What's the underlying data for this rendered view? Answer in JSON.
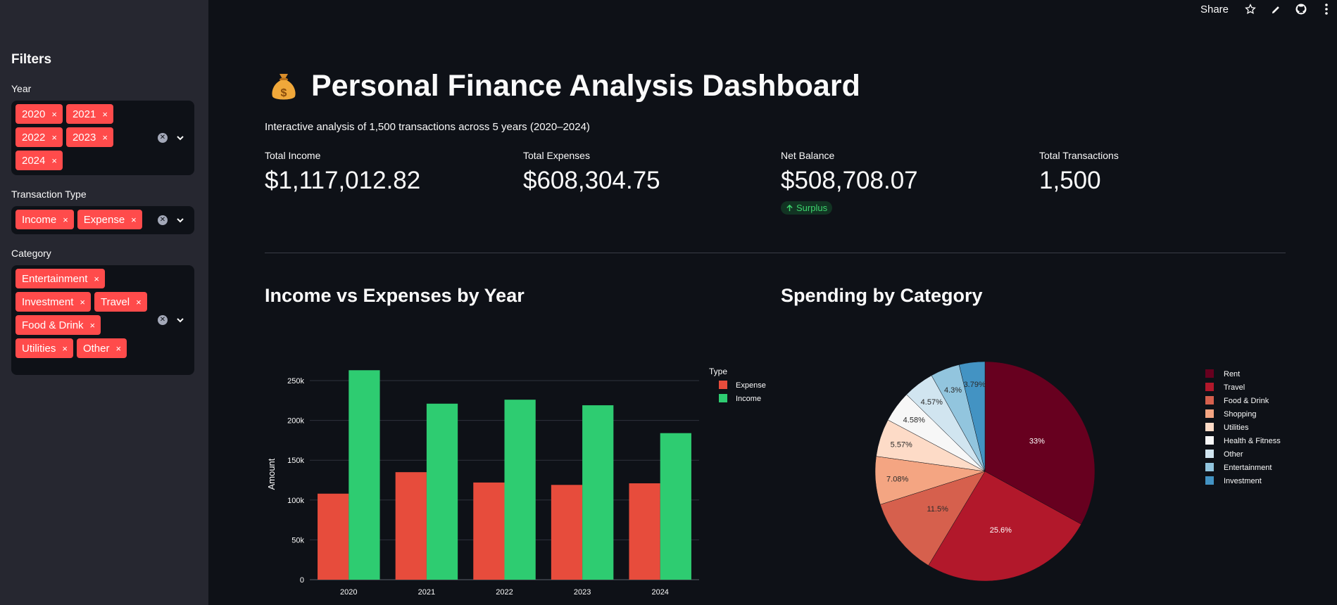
{
  "toolbar": {
    "share_label": "Share"
  },
  "sidebar": {
    "title": "Filters",
    "year": {
      "label": "Year",
      "options": [
        "2020",
        "2021",
        "2022",
        "2023",
        "2024"
      ]
    },
    "transaction_type": {
      "label": "Transaction Type",
      "options": [
        "Income",
        "Expense"
      ]
    },
    "category": {
      "label": "Category",
      "options": [
        "Entertainment",
        "Investment",
        "Travel",
        "Food & Drink",
        "Utilities",
        "Other"
      ]
    },
    "remove_glyph": "×"
  },
  "main": {
    "title": "Personal Finance Analysis Dashboard",
    "subtitle": "Interactive analysis of 1,500 transactions across 5 years (2020–2024)",
    "metrics": [
      {
        "label": "Total Income",
        "value": "$1,117,012.82"
      },
      {
        "label": "Total Expenses",
        "value": "$608,304.75"
      },
      {
        "label": "Net Balance",
        "value": "$508,708.07",
        "delta": "Surplus"
      },
      {
        "label": "Total Transactions",
        "value": "1,500"
      }
    ],
    "bar_section_title": "Income vs Expenses by Year",
    "pie_section_title": "Spending by Category"
  },
  "chart_data": [
    {
      "type": "bar",
      "title": "",
      "xlabel": "",
      "ylabel": "Amount",
      "categories": [
        "2020",
        "2021",
        "2022",
        "2023",
        "2024"
      ],
      "series": [
        {
          "name": "Expense",
          "color": "#e74c3c",
          "values": [
            108000,
            135000,
            122000,
            119000,
            121000
          ]
        },
        {
          "name": "Income",
          "color": "#2ecc71",
          "values": [
            263000,
            221000,
            226000,
            219000,
            184000
          ]
        }
      ],
      "ylim": [
        0,
        265000
      ],
      "yticks": [
        0,
        50000,
        100000,
        150000,
        200000,
        250000
      ],
      "ytick_labels": [
        "0",
        "50k",
        "100k",
        "150k",
        "200k",
        "250k"
      ],
      "legend_title": "Type",
      "legend_position": "top-right",
      "grid": true
    },
    {
      "type": "pie",
      "title": "",
      "slices": [
        {
          "label": "Rent",
          "percent": 33,
          "text": "33%",
          "color": "#67001f"
        },
        {
          "label": "Travel",
          "percent": 25.6,
          "text": "25.6%",
          "color": "#b2182b"
        },
        {
          "label": "Food & Drink",
          "percent": 11.5,
          "text": "11.5%",
          "color": "#d6604d"
        },
        {
          "label": "Shopping",
          "percent": 7.08,
          "text": "7.08%",
          "color": "#f4a582"
        },
        {
          "label": "Utilities",
          "percent": 5.57,
          "text": "5.57%",
          "color": "#fddbc7"
        },
        {
          "label": "Health & Fitness",
          "percent": 4.58,
          "text": "4.58%",
          "color": "#f7f7f7"
        },
        {
          "label": "Other",
          "percent": 4.57,
          "text": "4.57%",
          "color": "#d1e5f0"
        },
        {
          "label": "Entertainment",
          "percent": 4.3,
          "text": "4.3%",
          "color": "#92c5de"
        },
        {
          "label": "Investment",
          "percent": 3.79,
          "text": "3.79%",
          "color": "#4393c3"
        }
      ],
      "legend_position": "right"
    }
  ]
}
